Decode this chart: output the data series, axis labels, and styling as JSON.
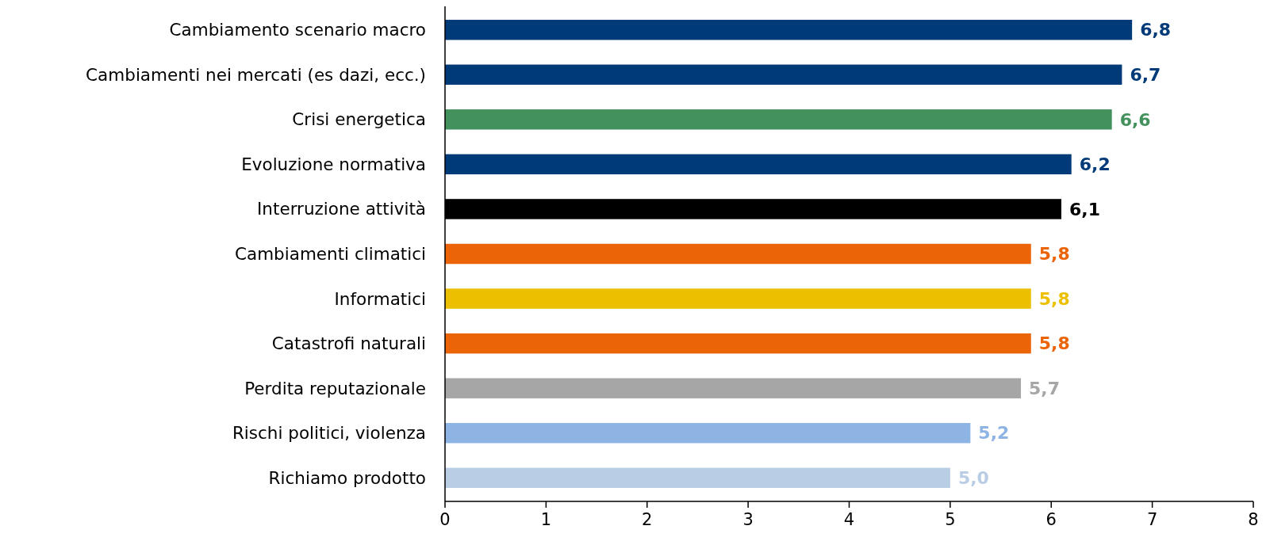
{
  "chart_data": {
    "type": "bar",
    "orientation": "horizontal",
    "categories": [
      "Cambiamento scenario macro",
      "Cambiamenti nei mercati (es dazi, ecc.)",
      "Crisi energetica",
      "Evoluzione normativa",
      "Interruzione attività",
      "Cambiamenti climatici",
      "Informatici",
      "Catastrofi naturali",
      "Perdita reputazionale",
      "Rischi politici, violenza",
      "Richiamo prodotto"
    ],
    "values": [
      6.8,
      6.7,
      6.6,
      6.2,
      6.1,
      5.8,
      5.8,
      5.8,
      5.7,
      5.2,
      5.0
    ],
    "colors": [
      "#003a78",
      "#003a78",
      "#43915d",
      "#003a78",
      "#000000",
      "#ec6408",
      "#ecc000",
      "#ec6408",
      "#a6a6a6",
      "#8eb4e3",
      "#b9cde5"
    ],
    "value_labels": [
      "6,8",
      "6,7",
      "6,6",
      "6,2",
      "6,1",
      "5,8",
      "5,8",
      "5,8",
      "5,7",
      "5,2",
      "5,0"
    ],
    "xlim": [
      0,
      8
    ],
    "xticks": [
      0,
      1,
      2,
      3,
      4,
      5,
      6,
      7,
      8
    ],
    "grid": false
  }
}
